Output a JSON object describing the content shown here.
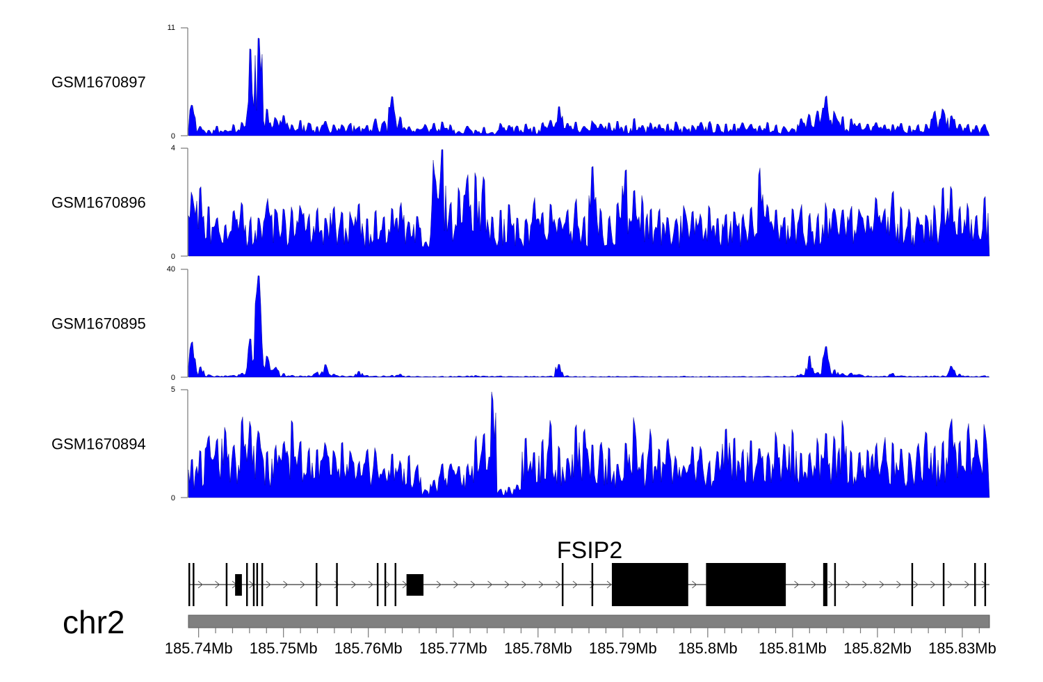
{
  "chart_data": {
    "type": "area",
    "chromosome": "chr2",
    "xrange_mb": [
      185.7388,
      185.8332
    ],
    "x_ticks": [
      "185.74Mb",
      "185.75Mb",
      "185.76Mb",
      "185.77Mb",
      "185.78Mb",
      "185.79Mb",
      "185.8Mb",
      "185.81Mb",
      "185.82Mb",
      "185.83Mb"
    ],
    "x_tick_values": [
      185.74,
      185.75,
      185.76,
      185.77,
      185.78,
      185.79,
      185.8,
      185.81,
      185.82,
      185.83
    ],
    "fill_color": "#0000ff",
    "tracks": [
      {
        "name": "GSM1670897",
        "ymax_label": "11",
        "ymin_label": "0",
        "ylim": [
          0,
          11
        ],
        "values": [
          3.5,
          1,
          0.6,
          1,
          0.6,
          1.2,
          1.4,
          9.5,
          11,
          3,
          2,
          2.2,
          1.2,
          1.6,
          1.5,
          1,
          1.5,
          1.3,
          1.2,
          1.4,
          1,
          1.2,
          1.8,
          1.6,
          4,
          2,
          1,
          0.8,
          1.2,
          1.3,
          1.5,
          1.2,
          0.5,
          1,
          0.6,
          1,
          0.4,
          1.3,
          1.2,
          1.1,
          1.3,
          1,
          1.4,
          1.6,
          3.2,
          1.3,
          1.4,
          1,
          1.6,
          1.3,
          1.4,
          1.5,
          1.1,
          1.8,
          1.2,
          1.4,
          1.2,
          1.3,
          1.5,
          1,
          1.1,
          1.4,
          1.5,
          1.2,
          1.3,
          1.4,
          1.4,
          1.2,
          1.1,
          1.5,
          1.2,
          1,
          0.8,
          2,
          2.3,
          2.6,
          4.1,
          2.6,
          2,
          1.8,
          1.4,
          1.3,
          1.5,
          1.2,
          1.3,
          1.4,
          1.1,
          1.2,
          1.3,
          2.6,
          2.8,
          2.3,
          1.3,
          1.2,
          1.1,
          1.2
        ]
      },
      {
        "name": "GSM1670896",
        "ymax_label": "4",
        "ymin_label": "0",
        "ylim": [
          0,
          4
        ],
        "values": [
          2.6,
          2.6,
          2,
          1.6,
          1.3,
          1.8,
          2,
          1.5,
          1.6,
          2.2,
          2,
          1.8,
          1.9,
          2,
          1.6,
          1.8,
          1.6,
          2,
          1.8,
          1.7,
          2,
          1.6,
          1.8,
          1.5,
          1.9,
          2,
          1.3,
          1.6,
          0.6,
          3.6,
          4,
          2.2,
          2.8,
          3.3,
          3.4,
          3,
          1.6,
          1.8,
          2,
          1.6,
          1.5,
          2.2,
          1.8,
          2,
          1.6,
          1.8,
          2.3,
          1.6,
          3.4,
          1.8,
          1.6,
          2,
          3.4,
          2.6,
          2.3,
          2,
          1.8,
          1.6,
          1.5,
          2,
          1.8,
          1.6,
          2,
          1.6,
          1.6,
          1.8,
          1.6,
          1.9,
          3.3,
          2,
          1.8,
          1.6,
          1.8,
          2,
          1.6,
          1.6,
          2,
          2,
          1.8,
          2,
          1.9,
          1.6,
          2.2,
          1.9,
          2.6,
          2,
          1.8,
          1.5,
          1.6,
          1.9,
          2.6,
          2.6,
          2,
          2,
          1.6,
          2.3
        ]
      },
      {
        "name": "GSM1670895",
        "ymax_label": "40",
        "ymin_label": "0",
        "ylim": [
          0,
          40
        ],
        "values": [
          14,
          4,
          1,
          0.6,
          0.6,
          0.8,
          1.6,
          15,
          40,
          8,
          4,
          1.5,
          0.8,
          0.6,
          0.6,
          2,
          5,
          1.2,
          0.6,
          0.5,
          2.2,
          0.8,
          0.5,
          0.6,
          0.8,
          1.2,
          0.5,
          0.4,
          0.3,
          0.3,
          0.4,
          0.4,
          0.5,
          0.6,
          0.7,
          0.5,
          0.4,
          0.5,
          0.4,
          0.3,
          0.4,
          0.4,
          0.4,
          0.5,
          5.5,
          0.6,
          0.4,
          0.3,
          0.3,
          0.3,
          0.4,
          0.4,
          0.3,
          0.4,
          0.3,
          0.3,
          0.4,
          0.3,
          0.3,
          0.5,
          0.3,
          0.3,
          0.4,
          0.3,
          0.3,
          0.3,
          0.4,
          0.3,
          0.3,
          0.4,
          0.3,
          0.4,
          0.4,
          1.2,
          8,
          2,
          12,
          3,
          1.5,
          1.6,
          1.2,
          0.6,
          0.4,
          0.5,
          1.5,
          0.6,
          0.4,
          0.4,
          0.5,
          0.6,
          0.6,
          4.5,
          1.2,
          0.5,
          0.4,
          0.6
        ]
      },
      {
        "name": "GSM1670894",
        "ymax_label": "5",
        "ymin_label": "0",
        "ylim": [
          0,
          5
        ],
        "values": [
          1.8,
          2.2,
          3.2,
          3,
          3.5,
          2.6,
          3.8,
          3.6,
          3.3,
          2.4,
          2.6,
          2.8,
          3.8,
          3,
          2.4,
          2.4,
          2.8,
          2.4,
          2.6,
          2.2,
          1.8,
          2.4,
          2.4,
          1.4,
          2.1,
          1.8,
          2,
          1.6,
          0.4,
          0.9,
          1.8,
          1.7,
          1.6,
          1.6,
          3,
          3.2,
          5,
          0.4,
          0.5,
          0.6,
          3.1,
          2.4,
          3,
          3.6,
          2.6,
          2,
          3.5,
          3.2,
          2.8,
          2.6,
          2.4,
          1.8,
          2.8,
          3.8,
          2.2,
          3.2,
          2.4,
          2.8,
          2,
          1.6,
          2.6,
          2.4,
          1.8,
          2.4,
          3.2,
          2.8,
          2.4,
          3,
          2.6,
          2.2,
          3.2,
          2.6,
          3.3,
          2.4,
          2.2,
          2.8,
          3.2,
          3,
          3.6,
          2.4,
          2.2,
          2.4,
          2.6,
          2.8,
          2.8,
          2.4,
          2.2,
          2.6,
          3.2,
          2.6,
          2.8,
          3.9,
          2.8,
          3.5,
          3,
          3.5
        ]
      }
    ],
    "gene": {
      "name": "FSIP2",
      "strand": "+",
      "exons_mb": [
        [
          185.7388,
          185.739
        ],
        [
          185.7393,
          185.7395
        ],
        [
          185.7432,
          185.7434
        ],
        [
          185.7443,
          185.7451,
          "short"
        ],
        [
          185.7456,
          185.7458
        ],
        [
          185.7464,
          185.7466
        ],
        [
          185.7468,
          185.747
        ],
        [
          185.7474,
          185.7476
        ],
        [
          185.7538,
          185.754
        ],
        [
          185.7562,
          185.7564
        ],
        [
          185.761,
          185.7612
        ],
        [
          185.7619,
          185.7621
        ],
        [
          185.7631,
          185.7633
        ],
        [
          185.7645,
          185.7665,
          "short"
        ],
        [
          185.7828,
          185.783
        ],
        [
          185.7863,
          185.7865
        ],
        [
          185.7887,
          185.7977
        ],
        [
          185.7998,
          185.8092
        ],
        [
          185.8136,
          185.8141
        ],
        [
          185.8149,
          185.8151
        ],
        [
          185.824,
          185.8242
        ],
        [
          185.8277,
          185.8279
        ],
        [
          185.8314,
          185.8316
        ],
        [
          185.8326,
          185.8328
        ]
      ]
    }
  }
}
